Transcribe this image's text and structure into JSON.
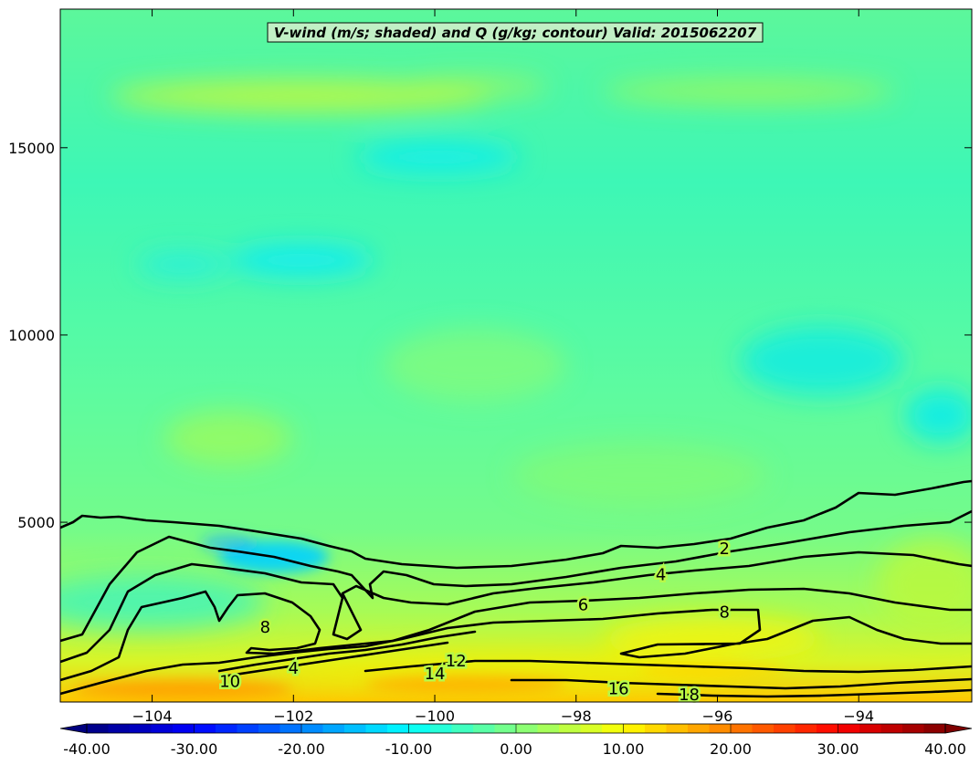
{
  "chart_data": {
    "type": "heatmap",
    "title": "V-wind (m/s; shaded) and Q (g/kg; contour) Valid: 2015062207",
    "xlim": [
      -105.3,
      -92.4
    ],
    "ylim": [
      200,
      18700
    ],
    "x_ticks": [
      -104,
      -102,
      -100,
      -98,
      -96,
      -94
    ],
    "x_tick_labels": [
      "−104",
      "−102",
      "−100",
      "−98",
      "−96",
      "−94"
    ],
    "y_ticks": [
      5000,
      10000,
      15000
    ],
    "y_tick_labels": [
      "5000",
      "10000",
      "15000"
    ],
    "shaded_field": {
      "name": "V-wind",
      "units": "m/s",
      "colormap": "jet",
      "vmin": -40,
      "vmax": 40,
      "colorbar_ticks": [
        -40,
        -30,
        -20,
        -10,
        0,
        10,
        20,
        30,
        40
      ],
      "colorbar_labels": [
        "-40.00",
        "-30.00",
        "-20.00",
        "-10.00",
        "0.00",
        "10.00",
        "20.00",
        "30.00",
        "40.00"
      ]
    },
    "contour_field": {
      "name": "Q",
      "units": "g/kg",
      "color": "#000000",
      "labels": [
        {
          "text": "2",
          "x": -95.9,
          "y": 4300
        },
        {
          "text": "4",
          "x": -96.8,
          "y": 3600
        },
        {
          "text": "6",
          "x": -97.9,
          "y": 2800
        },
        {
          "text": "8",
          "x": -95.9,
          "y": 2600
        },
        {
          "text": "8",
          "x": -102.4,
          "y": 2200
        },
        {
          "text": "4",
          "x": -102.0,
          "y": 1100
        },
        {
          "text": "10",
          "x": -102.9,
          "y": 750
        },
        {
          "text": "12",
          "x": -99.7,
          "y": 1300
        },
        {
          "text": "14",
          "x": -100.0,
          "y": 950
        },
        {
          "text": "16",
          "x": -97.4,
          "y": 550
        },
        {
          "text": "18",
          "x": -96.4,
          "y": 400
        }
      ]
    }
  }
}
